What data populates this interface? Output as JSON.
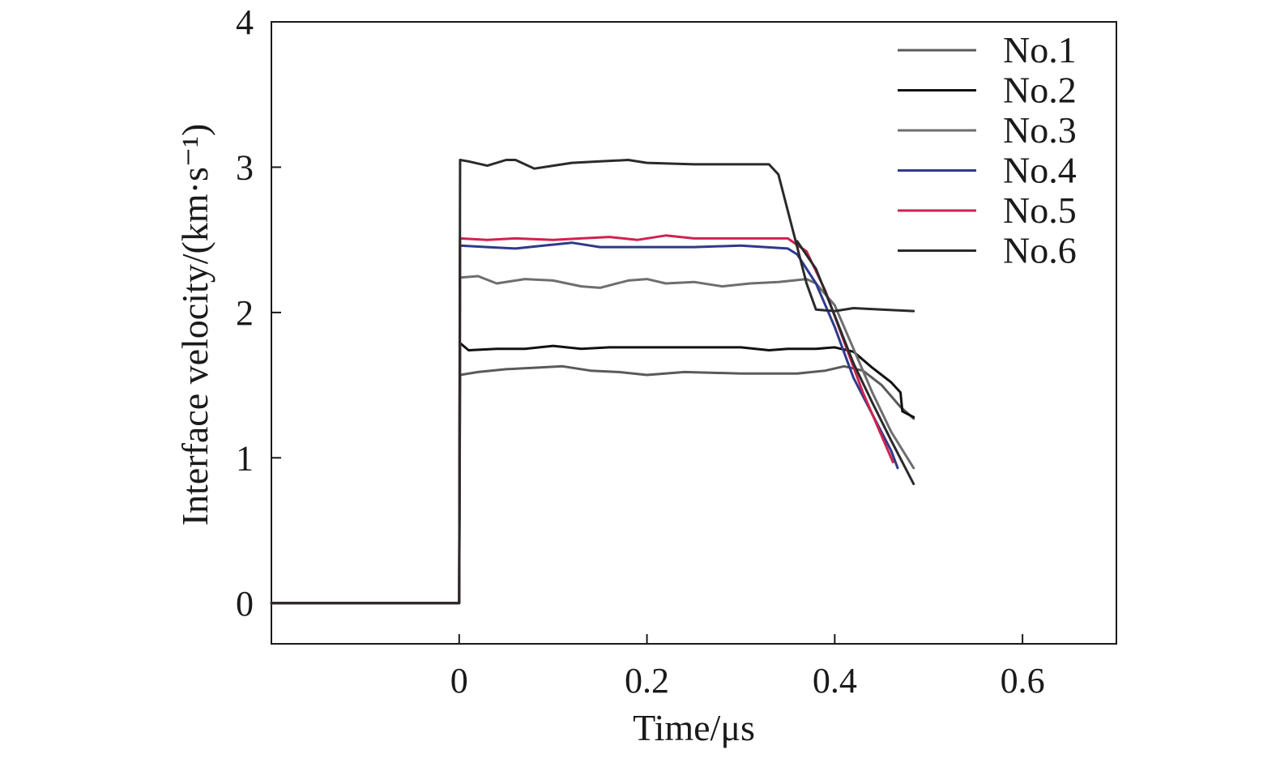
{
  "chart_data": {
    "type": "line",
    "xlabel": "Time/μs",
    "ylabel": "Interface velocity/(km·s⁻¹)",
    "xlim": [
      -0.2,
      0.7
    ],
    "ylim": [
      -0.28,
      4
    ],
    "x_ticks": [
      "0",
      "0.2",
      "0.4",
      "0.6"
    ],
    "x_tick_values": [
      0,
      0.2,
      0.4,
      0.6
    ],
    "y_ticks": [
      "0",
      "1",
      "2",
      "3",
      "4"
    ],
    "y_tick_values": [
      0,
      1,
      2,
      3,
      4
    ],
    "grid": false,
    "legend_position": "top-right",
    "series": [
      {
        "name": "No.1",
        "color": "#5a5a5a",
        "points": [
          [
            -0.2,
            0
          ],
          [
            0,
            0
          ],
          [
            0.001,
            1.57
          ],
          [
            0.02,
            1.59
          ],
          [
            0.05,
            1.61
          ],
          [
            0.08,
            1.62
          ],
          [
            0.11,
            1.63
          ],
          [
            0.14,
            1.6
          ],
          [
            0.17,
            1.59
          ],
          [
            0.2,
            1.57
          ],
          [
            0.24,
            1.59
          ],
          [
            0.3,
            1.58
          ],
          [
            0.36,
            1.58
          ],
          [
            0.39,
            1.6
          ],
          [
            0.41,
            1.63
          ],
          [
            0.43,
            1.6
          ],
          [
            0.45,
            1.5
          ],
          [
            0.47,
            1.35
          ],
          [
            0.484,
            1.27
          ]
        ]
      },
      {
        "name": "No.2",
        "color": "#111111",
        "points": [
          [
            -0.2,
            0
          ],
          [
            0,
            0
          ],
          [
            0.001,
            1.79
          ],
          [
            0.01,
            1.74
          ],
          [
            0.04,
            1.75
          ],
          [
            0.07,
            1.75
          ],
          [
            0.1,
            1.77
          ],
          [
            0.13,
            1.75
          ],
          [
            0.16,
            1.76
          ],
          [
            0.2,
            1.76
          ],
          [
            0.25,
            1.76
          ],
          [
            0.3,
            1.76
          ],
          [
            0.33,
            1.74
          ],
          [
            0.35,
            1.75
          ],
          [
            0.38,
            1.75
          ],
          [
            0.4,
            1.76
          ],
          [
            0.42,
            1.73
          ],
          [
            0.44,
            1.62
          ],
          [
            0.46,
            1.52
          ],
          [
            0.47,
            1.45
          ],
          [
            0.472,
            1.32
          ],
          [
            0.484,
            1.28
          ]
        ]
      },
      {
        "name": "No.3",
        "color": "#6e6e6e",
        "points": [
          [
            -0.2,
            0
          ],
          [
            0,
            0
          ],
          [
            0.001,
            2.24
          ],
          [
            0.02,
            2.25
          ],
          [
            0.04,
            2.2
          ],
          [
            0.07,
            2.23
          ],
          [
            0.1,
            2.22
          ],
          [
            0.13,
            2.18
          ],
          [
            0.15,
            2.17
          ],
          [
            0.18,
            2.22
          ],
          [
            0.2,
            2.23
          ],
          [
            0.22,
            2.2
          ],
          [
            0.25,
            2.21
          ],
          [
            0.28,
            2.18
          ],
          [
            0.31,
            2.2
          ],
          [
            0.34,
            2.21
          ],
          [
            0.37,
            2.23
          ],
          [
            0.38,
            2.2
          ],
          [
            0.4,
            2.05
          ],
          [
            0.42,
            1.75
          ],
          [
            0.44,
            1.45
          ],
          [
            0.46,
            1.18
          ],
          [
            0.484,
            0.93
          ]
        ]
      },
      {
        "name": "No.4",
        "color": "#2d3a8c",
        "points": [
          [
            -0.2,
            0
          ],
          [
            0,
            0
          ],
          [
            0.001,
            2.46
          ],
          [
            0.03,
            2.45
          ],
          [
            0.06,
            2.44
          ],
          [
            0.09,
            2.46
          ],
          [
            0.12,
            2.48
          ],
          [
            0.15,
            2.45
          ],
          [
            0.2,
            2.45
          ],
          [
            0.25,
            2.45
          ],
          [
            0.3,
            2.46
          ],
          [
            0.35,
            2.44
          ],
          [
            0.36,
            2.4
          ],
          [
            0.38,
            2.2
          ],
          [
            0.4,
            1.9
          ],
          [
            0.42,
            1.55
          ],
          [
            0.44,
            1.3
          ],
          [
            0.46,
            1.05
          ],
          [
            0.467,
            0.93
          ]
        ]
      },
      {
        "name": "No.5",
        "color": "#d0224f",
        "points": [
          [
            -0.2,
            0
          ],
          [
            0,
            0
          ],
          [
            0.001,
            2.51
          ],
          [
            0.03,
            2.5
          ],
          [
            0.06,
            2.51
          ],
          [
            0.1,
            2.5
          ],
          [
            0.13,
            2.51
          ],
          [
            0.16,
            2.52
          ],
          [
            0.19,
            2.5
          ],
          [
            0.22,
            2.53
          ],
          [
            0.25,
            2.51
          ],
          [
            0.3,
            2.51
          ],
          [
            0.35,
            2.51
          ],
          [
            0.37,
            2.42
          ],
          [
            0.39,
            2.15
          ],
          [
            0.41,
            1.8
          ],
          [
            0.43,
            1.45
          ],
          [
            0.45,
            1.15
          ],
          [
            0.462,
            0.97
          ]
        ]
      },
      {
        "name": "No.6",
        "color": "#2a2a2a",
        "points": [
          [
            -0.2,
            0
          ],
          [
            0,
            0
          ],
          [
            0.001,
            3.05
          ],
          [
            0.01,
            3.04
          ],
          [
            0.03,
            3.01
          ],
          [
            0.05,
            3.05
          ],
          [
            0.06,
            3.05
          ],
          [
            0.08,
            2.99
          ],
          [
            0.1,
            3.01
          ],
          [
            0.12,
            3.03
          ],
          [
            0.15,
            3.04
          ],
          [
            0.18,
            3.05
          ],
          [
            0.2,
            3.03
          ],
          [
            0.25,
            3.02
          ],
          [
            0.3,
            3.02
          ],
          [
            0.33,
            3.02
          ],
          [
            0.34,
            2.95
          ],
          [
            0.35,
            2.7
          ],
          [
            0.36,
            2.45
          ],
          [
            0.37,
            2.2
          ],
          [
            0.38,
            2.02
          ],
          [
            0.4,
            2.01
          ],
          [
            0.42,
            2.03
          ],
          [
            0.45,
            2.02
          ],
          [
            0.484,
            2.01
          ]
        ]
      },
      {
        "name": "No.6",
        "color": "#2a2a2a",
        "points": [
          [
            0.36,
            2.49
          ],
          [
            0.38,
            2.3
          ],
          [
            0.4,
            1.98
          ],
          [
            0.42,
            1.65
          ],
          [
            0.44,
            1.38
          ],
          [
            0.46,
            1.12
          ],
          [
            0.484,
            0.82
          ]
        ]
      }
    ]
  }
}
